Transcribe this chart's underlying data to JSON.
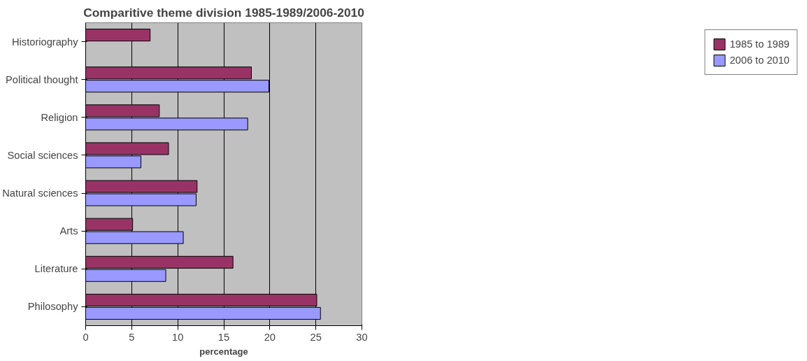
{
  "chart_data": {
    "type": "bar",
    "orientation": "horizontal",
    "title": "Comparitive theme division 1985-1989/2006-2010",
    "xlabel": "percentage",
    "categories": [
      "Historiography",
      "Political thought",
      "Religion",
      "Social sciences",
      "Natural sciences",
      "Arts",
      "Literature",
      "Philosophy"
    ],
    "series": [
      {
        "name": "1985 to 1989",
        "color": "#993366",
        "values": [
          7,
          18,
          8,
          9,
          12.1,
          5.1,
          16,
          25.1
        ]
      },
      {
        "name": "2006 to 2010",
        "color": "#9999ff",
        "values": [
          null,
          19.9,
          17.6,
          6,
          12,
          10.6,
          8.7,
          25.5
        ]
      }
    ],
    "xlim": [
      0,
      30
    ],
    "xticks": [
      0,
      5,
      10,
      15,
      20,
      25,
      30
    ],
    "grid": "x",
    "legend": "right"
  }
}
